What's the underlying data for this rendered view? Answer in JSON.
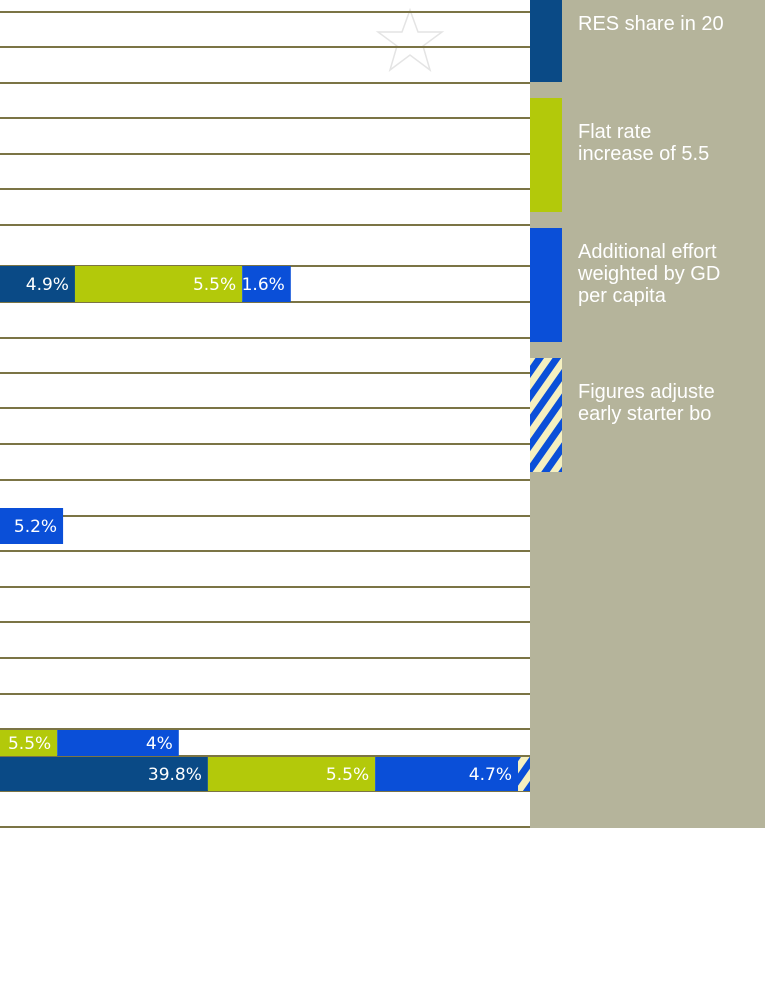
{
  "chart_data": {
    "type": "bar",
    "orientation": "horizontal",
    "stacked": true,
    "categories": [
      null,
      null,
      null,
      null
    ],
    "series": [
      {
        "name": "RES share in 20",
        "color": "#0a4a86",
        "values": [
          4.9,
          null,
          null,
          39.8
        ],
        "value_labels": [
          "4.9%",
          null,
          null,
          "39.8%"
        ]
      },
      {
        "name": "Flat rate increase of 5.5",
        "color": "#b3c90a",
        "values": [
          5.5,
          null,
          5.5,
          5.5
        ],
        "value_labels": [
          "5.5%",
          null,
          "5.5%",
          "5.5%"
        ]
      },
      {
        "name": "Additional effort weighted by GD per capita",
        "color": "#0a4fd8",
        "values": [
          1.6,
          5.2,
          4,
          4.7
        ],
        "value_labels": [
          "1.6%",
          "5.2%",
          "4%",
          "4.7%"
        ]
      }
    ],
    "legend_extra": "Figures adjuste early starter bo",
    "grid_color": "#7b7445",
    "panel_color": "#b5b49b"
  }
}
